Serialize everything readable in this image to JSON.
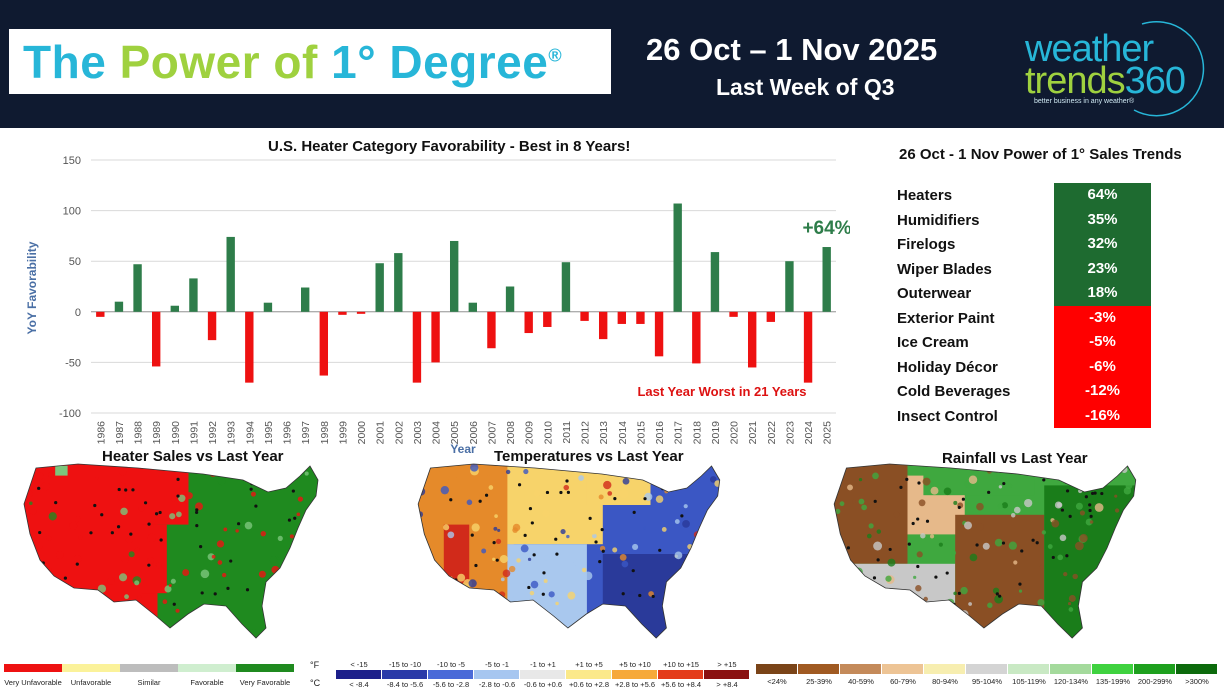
{
  "header": {
    "title_parts": [
      "The",
      "Power",
      "of",
      "1",
      "°",
      "Degree"
    ],
    "title_reg": "®",
    "date_range": "26 Oct – 1 Nov 2025",
    "subtitle": "Last Week of Q3",
    "logo_word1": "weather",
    "logo_word2a": "trends",
    "logo_word2b": "360",
    "logo_tagline": "better business in any weather®"
  },
  "chart_data": {
    "type": "bar",
    "title": "U.S. Heater Category Favorability - Best in 8 Years!",
    "ylabel": "YoY Favorability",
    "xlabel": "Year",
    "ylim": [
      -100,
      150
    ],
    "yticks": [
      -100,
      -50,
      0,
      50,
      100,
      150
    ],
    "grid": true,
    "categories": [
      "1986",
      "1987",
      "1988",
      "1989",
      "1990",
      "1991",
      "1992",
      "1993",
      "1994",
      "1995",
      "1996",
      "1997",
      "1998",
      "1999",
      "2000",
      "2001",
      "2002",
      "2003",
      "2004",
      "2005",
      "2006",
      "2007",
      "2008",
      "2009",
      "2010",
      "2011",
      "2012",
      "2013",
      "2014",
      "2015",
      "2016",
      "2017",
      "2018",
      "2019",
      "2020",
      "2021",
      "2022",
      "2023",
      "2024",
      "2025"
    ],
    "values": [
      -5,
      10,
      47,
      -54,
      6,
      33,
      -28,
      74,
      -70,
      9,
      0,
      24,
      -63,
      -3,
      -2,
      48,
      58,
      -70,
      -50,
      70,
      9,
      -36,
      25,
      -21,
      -15,
      49,
      -9,
      -27,
      -12,
      -12,
      -44,
      107,
      -51,
      59,
      -5,
      -55,
      -10,
      50,
      -70,
      64
    ],
    "positive_color": "#2e7d4a",
    "negative_color": "#ee1111",
    "annotations": [
      {
        "text": "+64%",
        "color": "#2e7d4a"
      },
      {
        "text": "Last Year Worst in 21 Years",
        "color": "#dd1111"
      }
    ]
  },
  "trends": {
    "title": "26 Oct - 1 Nov Power of 1° Sales Trends",
    "rows": [
      {
        "label": "Heaters",
        "value": "64%",
        "color": "#1e6b30"
      },
      {
        "label": "Humidifiers",
        "value": "35%",
        "color": "#1e6b30"
      },
      {
        "label": "Firelogs",
        "value": "32%",
        "color": "#1e6b30"
      },
      {
        "label": "Wiper Blades",
        "value": "23%",
        "color": "#1e6b30"
      },
      {
        "label": "Outerwear",
        "value": "18%",
        "color": "#1e6b30"
      },
      {
        "label": "Exterior Paint",
        "value": "-3%",
        "color": "#ff0000"
      },
      {
        "label": "Ice Cream",
        "value": "-5%",
        "color": "#ff0000"
      },
      {
        "label": "Holiday Décor",
        "value": "-6%",
        "color": "#ff0000"
      },
      {
        "label": "Cold Beverages",
        "value": "-12%",
        "color": "#ff0000"
      },
      {
        "label": "Insect Control",
        "value": "-16%",
        "color": "#ff0000"
      }
    ]
  },
  "maps": [
    {
      "title": "Heater Sales vs Last Year",
      "palette": [
        "#ee1111",
        "#1f8a1f",
        "#f4a0a0",
        "#7cc67c"
      ]
    },
    {
      "title": "Temperatures vs Last Year",
      "palette": [
        "#e58a2a",
        "#f7d36a",
        "#a9c8ee",
        "#3b57c4",
        "#2a3a9a"
      ]
    },
    {
      "title": "Rainfall vs Last Year",
      "palette": [
        "#8a4f24",
        "#c8c8c8",
        "#3fa83f",
        "#1a7d1a",
        "#e6b98a"
      ]
    }
  ],
  "legend_heater": {
    "items": [
      {
        "label": "Very Unfavorable",
        "color": "#ee1111"
      },
      {
        "label": "Unfavorable",
        "color": "#fbf29a"
      },
      {
        "label": "Similar",
        "color": "#bdbdbd"
      },
      {
        "label": "Favorable",
        "color": "#cfeecf"
      },
      {
        "label": "Very Favorable",
        "color": "#1f8a1f"
      }
    ]
  },
  "legend_temp": {
    "unit_f": "°F",
    "unit_c": "°C",
    "items": [
      {
        "f": "< -15",
        "c": "< -8.4",
        "color": "#1c1f8a"
      },
      {
        "f": "-15 to -10",
        "c": "-8.4 to -5.6",
        "color": "#2a3aa8"
      },
      {
        "f": "-10 to -5",
        "c": "-5.6 to -2.8",
        "color": "#4a6ad8"
      },
      {
        "f": "-5 to -1",
        "c": "-2.8 to -0.6",
        "color": "#a6c6f0"
      },
      {
        "f": "-1 to +1",
        "c": "-0.6 to +0.6",
        "color": "#e8e8e8"
      },
      {
        "f": "+1 to +5",
        "c": "+0.6 to +2.8",
        "color": "#fbe98a"
      },
      {
        "f": "+5 to +10",
        "c": "+2.8 to +5.6",
        "color": "#f6a93a"
      },
      {
        "f": "+10 to +15",
        "c": "+5.6 to +8.4",
        "color": "#e43b1a"
      },
      {
        "f": "> +15",
        "c": "> +8.4",
        "color": "#8a1010"
      }
    ]
  },
  "legend_rain": {
    "items": [
      {
        "label": "<24%",
        "color": "#7a4418"
      },
      {
        "label": "25-39%",
        "color": "#a05a22"
      },
      {
        "label": "40-59%",
        "color": "#c48a5a"
      },
      {
        "label": "60-79%",
        "color": "#edc495"
      },
      {
        "label": "80-94%",
        "color": "#f7eeb0"
      },
      {
        "label": "95-104%",
        "color": "#d4d4d4"
      },
      {
        "label": "105-119%",
        "color": "#c9e9c4"
      },
      {
        "label": "120-134%",
        "color": "#a4da9c"
      },
      {
        "label": "135-199%",
        "color": "#3fd23f"
      },
      {
        "label": "200-299%",
        "color": "#1ea01e"
      },
      {
        "label": ">300%",
        "color": "#0c6a0c"
      }
    ]
  }
}
